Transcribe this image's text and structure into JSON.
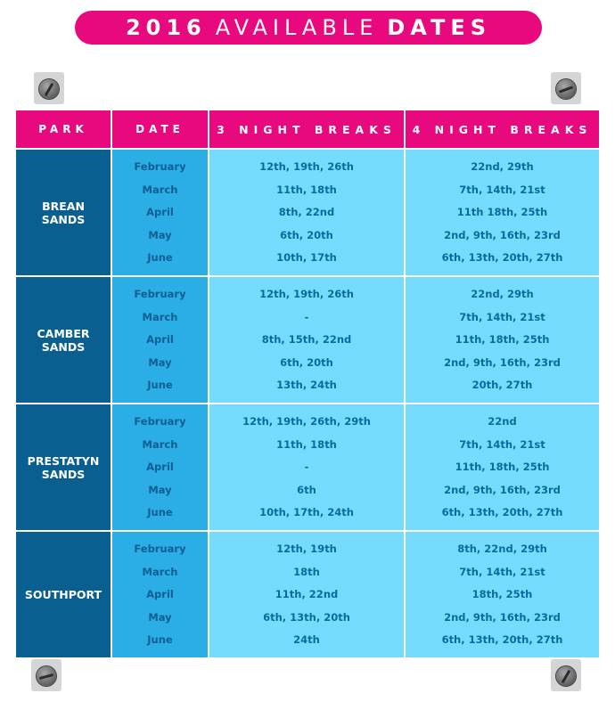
{
  "title": {
    "year": "2016",
    "available": "AVAILABLE",
    "dates": "DATES"
  },
  "headers": {
    "park": "PARK",
    "date": "DATE",
    "three_night": "3 NIGHT BREAKS",
    "four_night": "4 NIGHT BREAKS"
  },
  "colors": {
    "pink": "#e8097f",
    "park_blue": "#095f90",
    "date_blue": "#2baee5",
    "light_blue": "#76dcff"
  },
  "icons": [
    "screw-icon"
  ],
  "parks": [
    {
      "name_line1": "BREAN",
      "name_line2": "SANDS",
      "months": [
        "February",
        "March",
        "April",
        "May",
        "June"
      ],
      "three_night": [
        "12th, 19th, 26th",
        "11th, 18th",
        "8th, 22nd",
        "6th, 20th",
        "10th, 17th"
      ],
      "four_night": [
        "22nd, 29th",
        "7th, 14th, 21st",
        "11th 18th, 25th",
        "2nd, 9th, 16th, 23rd",
        "6th, 13th, 20th, 27th"
      ]
    },
    {
      "name_line1": "CAMBER",
      "name_line2": "SANDS",
      "months": [
        "February",
        "March",
        "April",
        "May",
        "June"
      ],
      "three_night": [
        "12th, 19th, 26th",
        "-",
        "8th, 15th, 22nd",
        "6th, 20th",
        "13th, 24th"
      ],
      "four_night": [
        "22nd, 29th",
        "7th, 14th, 21st",
        "11th, 18th, 25th",
        "2nd, 9th, 16th, 23rd",
        "20th, 27th"
      ]
    },
    {
      "name_line1": "PRESTATYN",
      "name_line2": "SANDS",
      "months": [
        "February",
        "March",
        "April",
        "May",
        "June"
      ],
      "three_night": [
        "12th, 19th, 26th, 29th",
        "11th, 18th",
        "-",
        "6th",
        "10th, 17th, 24th"
      ],
      "four_night": [
        "22nd",
        "7th, 14th, 21st",
        "11th, 18th, 25th",
        "2nd, 9th, 16th, 23rd",
        "6th, 13th, 20th, 27th"
      ]
    },
    {
      "name_line1": "SOUTHPORT",
      "name_line2": "",
      "months": [
        "February",
        "March",
        "April",
        "May",
        "June"
      ],
      "three_night": [
        "12th, 19th",
        "18th",
        "11th, 22nd",
        "6th, 13th, 20th",
        "24th"
      ],
      "four_night": [
        "8th, 22nd, 29th",
        "7th, 14th, 21st",
        "18th, 25th",
        "2nd, 9th, 16th, 23rd",
        "6th, 13th, 20th, 27th"
      ]
    }
  ]
}
